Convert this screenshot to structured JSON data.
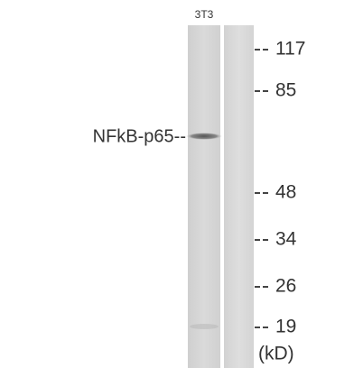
{
  "lane_label": "3T3",
  "band_label": "NFkB-p65--",
  "markers": [
    "117",
    "85",
    "48",
    "34",
    "26",
    "19"
  ],
  "unit": "(kD)"
}
